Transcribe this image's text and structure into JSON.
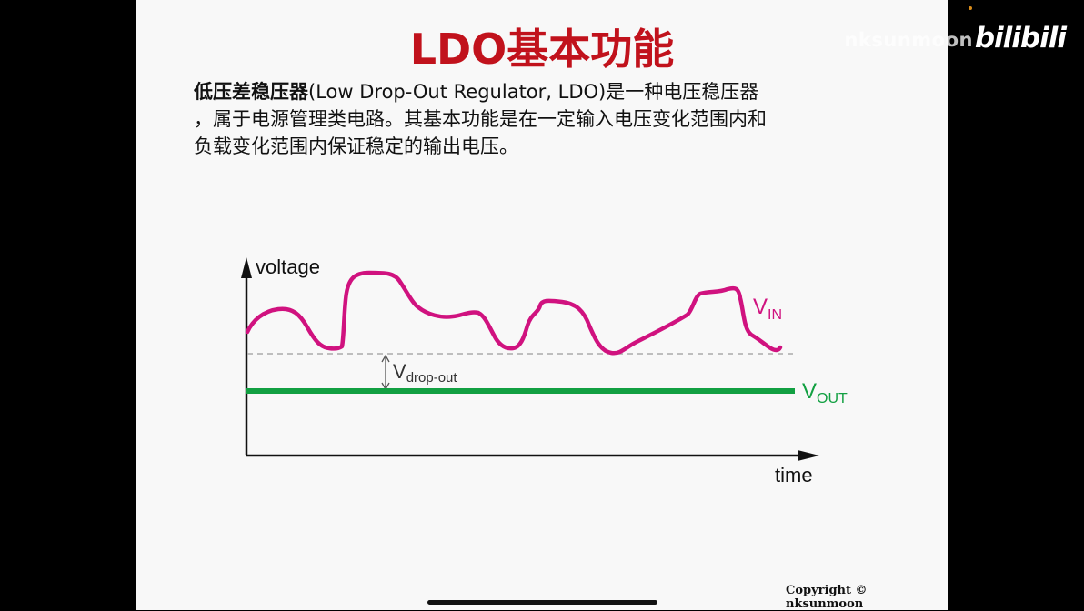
{
  "slide": {
    "title": "LDO基本功能",
    "paragraph": {
      "line1_bold": "低压差稳压器",
      "line1_rest": "(Low Drop-Out Regulator, LDO)是一种电压稳压器",
      "line2": "，属于电源管理类电路。其基本功能是在一定输入电压变化范围内和",
      "line3": "负载变化范围内保证稳定的输出电压。"
    },
    "copyright": "Copyright © nksunmoon"
  },
  "overlay": {
    "watermark": "nksunmoon",
    "logo": "bilibili"
  },
  "diagram": {
    "y_axis_label": "voltage",
    "x_axis_label": "time",
    "vin": {
      "main": "V",
      "sub": "IN",
      "color": "#d0127f"
    },
    "vout": {
      "main": "V",
      "sub": "OUT",
      "color": "#12a042"
    },
    "dropout": {
      "main": "V",
      "sub": "drop-out"
    },
    "dashed_color": "#aaaaaa",
    "axis_color": "#111111"
  }
}
